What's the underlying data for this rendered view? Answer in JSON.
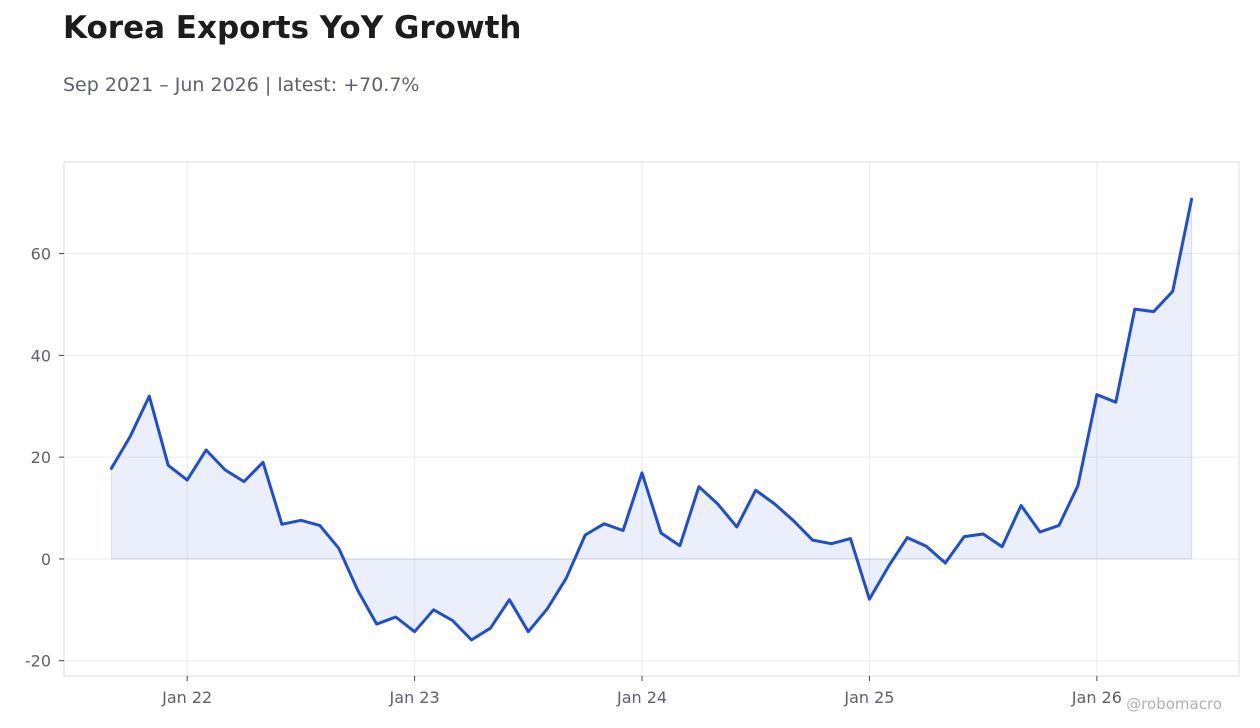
{
  "title": "Korea Exports YoY Growth",
  "subtitle": "Sep 2021 – Jun 2026 | latest: +70.7%",
  "watermark": "@robomacro",
  "colors": {
    "line": "#1f4fcf",
    "fill": "#1f4fcf",
    "grid": "#ebebeb",
    "frame": "#dcdcdc",
    "text": "#5f6070"
  },
  "chart_data": {
    "type": "area",
    "x_start": "2021-09",
    "x_end": "2026-06",
    "xlim": [
      "2021-06",
      "2026-08"
    ],
    "ylim": [
      -23,
      78
    ],
    "grid": true,
    "x_ticks": [
      {
        "date": "2022-01",
        "label": "Jan 22"
      },
      {
        "date": "2023-01",
        "label": "Jan 23"
      },
      {
        "date": "2024-01",
        "label": "Jan 24"
      },
      {
        "date": "2025-01",
        "label": "Jan 25"
      },
      {
        "date": "2026-01",
        "label": "Jan 26"
      }
    ],
    "y_ticks": [
      {
        "value": 60,
        "label": "60"
      },
      {
        "value": 40,
        "label": "40"
      },
      {
        "value": 20,
        "label": "20"
      },
      {
        "value": 0,
        "label": "0"
      },
      {
        "value": -20,
        "label": "-20"
      }
    ],
    "series": [
      {
        "x": [
          "2021-09",
          "2021-10",
          "2021-11",
          "2021-12",
          "2022-01",
          "2022-02",
          "2022-03",
          "2022-04",
          "2022-05",
          "2022-06",
          "2022-07",
          "2022-08",
          "2022-09",
          "2022-10",
          "2022-11",
          "2022-12",
          "2023-01",
          "2023-02",
          "2023-03",
          "2023-04",
          "2023-05",
          "2023-06",
          "2023-07",
          "2023-08",
          "2023-09",
          "2023-10",
          "2023-11",
          "2023-12",
          "2024-01",
          "2024-02",
          "2024-03",
          "2024-04",
          "2024-05",
          "2024-06",
          "2024-07",
          "2024-08",
          "2024-09",
          "2024-10",
          "2024-11",
          "2024-12",
          "2025-01",
          "2025-02",
          "2025-03",
          "2025-04",
          "2025-05",
          "2025-06",
          "2025-07",
          "2025-08",
          "2025-09",
          "2025-10",
          "2025-11",
          "2025-12",
          "2026-01",
          "2026-02",
          "2026-03",
          "2026-04",
          "2026-05",
          "2026-06"
        ],
        "values": [
          17.8,
          24.1,
          32.0,
          18.4,
          15.5,
          21.4,
          17.5,
          15.2,
          19.0,
          6.8,
          7.6,
          6.6,
          2.1,
          -6.2,
          -12.8,
          -11.4,
          -14.3,
          -10.0,
          -12.1,
          -15.9,
          -13.6,
          -8.0,
          -14.3,
          -9.8,
          -3.8,
          4.7,
          6.9,
          5.6,
          16.9,
          5.1,
          2.6,
          14.2,
          10.8,
          6.3,
          13.5,
          10.8,
          7.5,
          3.7,
          3.0,
          4.0,
          -7.9,
          -1.5,
          4.2,
          2.5,
          -0.8,
          4.4,
          4.9,
          2.4,
          10.5,
          5.3,
          6.6,
          14.4,
          32.3,
          30.8,
          49.1,
          48.6,
          52.6,
          70.7
        ]
      }
    ]
  }
}
